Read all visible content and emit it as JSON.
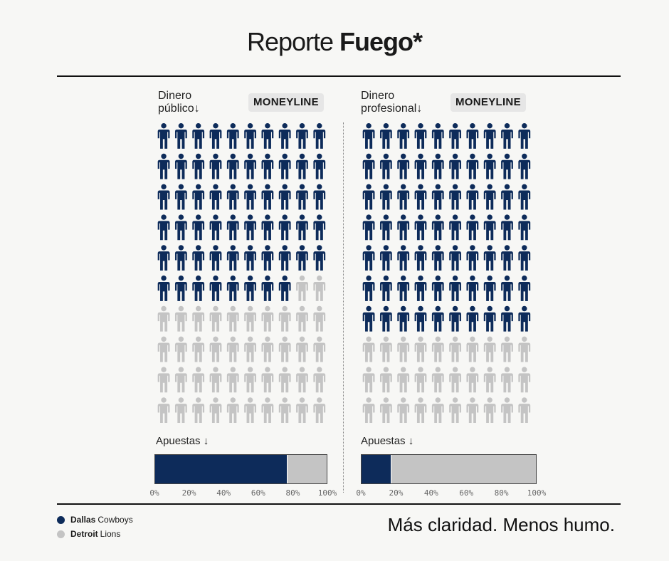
{
  "header": {
    "title_regular": "Reporte",
    "title_bold": "Fuego*"
  },
  "colors": {
    "dallas": "#0d2b5a",
    "detroit": "#c4c4c4"
  },
  "panels": [
    {
      "label_line1": "Dinero",
      "label_line2": "público↓",
      "badge": "MONEYLINE",
      "bets_label": "Apuestas ↓"
    },
    {
      "label_line1": "Dinero",
      "label_line2": "profesional↓",
      "badge": "MONEYLINE",
      "bets_label": "Apuestas ↓"
    }
  ],
  "chart_data": [
    {
      "type": "waffle",
      "metric": "Dinero público",
      "grid_rows": 10,
      "grid_cols": 10,
      "series": [
        {
          "name": "Dallas Cowboys",
          "value": 58
        },
        {
          "name": "Detroit Lions",
          "value": 42
        }
      ]
    },
    {
      "type": "waffle",
      "metric": "Dinero profesional",
      "grid_rows": 10,
      "grid_cols": 10,
      "series": [
        {
          "name": "Dallas Cowboys",
          "value": 70
        },
        {
          "name": "Detroit Lions",
          "value": 30
        }
      ]
    },
    {
      "type": "bar",
      "stacked": true,
      "metric": "Apuestas (Dinero público)",
      "xlim": [
        0,
        100
      ],
      "ticks": [
        "0%",
        "20%",
        "40%",
        "60%",
        "80%",
        "100%"
      ],
      "series": [
        {
          "name": "Dallas Cowboys",
          "value": 77
        },
        {
          "name": "Detroit Lions",
          "value": 23
        }
      ]
    },
    {
      "type": "bar",
      "stacked": true,
      "metric": "Apuestas (Dinero profesional)",
      "xlim": [
        0,
        100
      ],
      "ticks": [
        "0%",
        "20%",
        "40%",
        "60%",
        "80%",
        "100%"
      ],
      "series": [
        {
          "name": "Dallas Cowboys",
          "value": 17
        },
        {
          "name": "Detroit Lions",
          "value": 83
        }
      ]
    }
  ],
  "legend": [
    {
      "team": "Dallas",
      "name": "Cowboys"
    },
    {
      "team": "Detroit",
      "name": "Lions"
    }
  ],
  "footer": {
    "tagline": "Más claridad. Menos humo."
  }
}
